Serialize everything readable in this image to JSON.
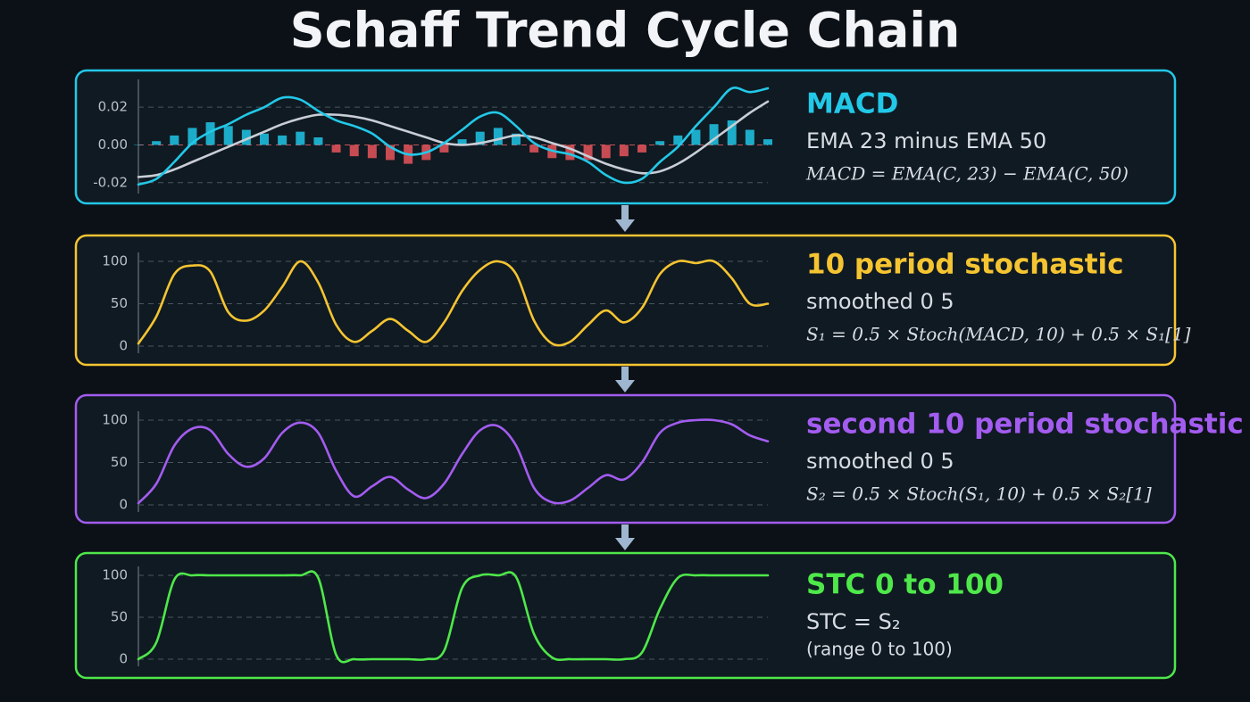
{
  "title": "Schaff Trend Cycle Chain",
  "chart_data": [
    {
      "type": "line",
      "title": "MACD",
      "subtitle": "EMA 23 minus EMA 50",
      "formula": "MACD = EMA(C, 23) − EMA(C, 50)",
      "color": "#22c8e8",
      "ylim": [
        -0.022,
        0.03
      ],
      "yticks": [
        0.02,
        {
          "value": 0,
          "label": "0.00"
        },
        -0.02
      ],
      "grid": true,
      "series": [
        {
          "type": "bar",
          "color": "#1fc7e6",
          "negative_color": "#e8555a",
          "values": [
            0,
            0.002,
            0.005,
            0.009,
            0.012,
            0.01,
            0.008,
            0.006,
            0.005,
            0.007,
            0.004,
            -0.004,
            -0.006,
            -0.007,
            -0.008,
            -0.01,
            -0.008,
            -0.004,
            0.003,
            0.007,
            0.009,
            0.006,
            -0.004,
            -0.007,
            -0.008,
            -0.008,
            -0.007,
            -0.006,
            -0.004,
            0.002,
            0.005,
            0.008,
            0.011,
            0.013,
            0.008,
            0.003
          ]
        },
        {
          "type": "line",
          "color": "#c9ced6",
          "values": [
            -0.017,
            -0.016,
            -0.013,
            -0.009,
            -0.005,
            -0.001,
            0.003,
            0.007,
            0.011,
            0.014,
            0.016,
            0.016,
            0.015,
            0.013,
            0.01,
            0.007,
            0.004,
            0.001,
            0,
            0.001,
            0.003,
            0.005,
            0.004,
            0.001,
            -0.002,
            -0.006,
            -0.01,
            -0.013,
            -0.015,
            -0.014,
            -0.01,
            -0.004,
            0.003,
            0.01,
            0.017,
            0.023
          ]
        },
        {
          "type": "line",
          "color": "#22c8e8",
          "values": [
            -0.021,
            -0.018,
            -0.009,
            0.001,
            0.007,
            0.011,
            0.016,
            0.02,
            0.025,
            0.024,
            0.018,
            0.013,
            0.01,
            0.006,
            -0.001,
            -0.005,
            -0.004,
            0.001,
            0.008,
            0.015,
            0.017,
            0.01,
            0.001,
            -0.003,
            -0.005,
            -0.009,
            -0.016,
            -0.02,
            -0.018,
            -0.009,
            -0.001,
            0.01,
            0.02,
            0.03,
            0.028,
            0.03
          ]
        }
      ]
    },
    {
      "type": "line",
      "title": "10 period stochastic",
      "subtitle": "smoothed 0 5",
      "formula": "S₁ = 0.5 × Stoch(MACD, 10) + 0.5 × S₁[1]",
      "color": "#f5c431",
      "ylim": [
        0,
        100
      ],
      "yticks": [
        100,
        50,
        0
      ],
      "grid": true,
      "series": [
        {
          "type": "line",
          "color": "#f5c431",
          "values": [
            3,
            35,
            85,
            95,
            88,
            40,
            30,
            42,
            70,
            100,
            75,
            25,
            5,
            18,
            32,
            18,
            5,
            28,
            65,
            90,
            100,
            85,
            30,
            3,
            5,
            25,
            42,
            28,
            45,
            85,
            100,
            98,
            100,
            80,
            50,
            50
          ]
        }
      ]
    },
    {
      "type": "line",
      "title": "second 10 period stochastic",
      "subtitle": "smoothed 0 5",
      "formula": "S₂ = 0.5 × Stoch(S₁, 10) + 0.5 × S₂[1]",
      "color": "#a35cf0",
      "ylim": [
        0,
        100
      ],
      "yticks": [
        100,
        50,
        0
      ],
      "grid": true,
      "series": [
        {
          "type": "line",
          "color": "#a35cf0",
          "values": [
            2,
            25,
            70,
            90,
            88,
            60,
            45,
            55,
            85,
            97,
            85,
            40,
            10,
            22,
            33,
            18,
            8,
            25,
            60,
            88,
            93,
            70,
            20,
            3,
            5,
            20,
            35,
            30,
            50,
            85,
            97,
            100,
            100,
            95,
            82,
            75
          ]
        }
      ]
    },
    {
      "type": "line",
      "title": "STC 0 to 100",
      "subtitle": "STC = S₂",
      "formula": "(range 0 to 100)",
      "color": "#4ee84a",
      "ylim": [
        0,
        100
      ],
      "yticks": [
        100,
        50,
        0
      ],
      "grid": true,
      "series": [
        {
          "type": "line",
          "color": "#4ee84a",
          "values": [
            0,
            20,
            95,
            100,
            100,
            100,
            100,
            100,
            100,
            100,
            97,
            5,
            0,
            0,
            0,
            0,
            0,
            10,
            85,
            100,
            100,
            98,
            30,
            2,
            0,
            0,
            0,
            0,
            8,
            60,
            97,
            100,
            100,
            100,
            100,
            100
          ]
        }
      ]
    }
  ]
}
